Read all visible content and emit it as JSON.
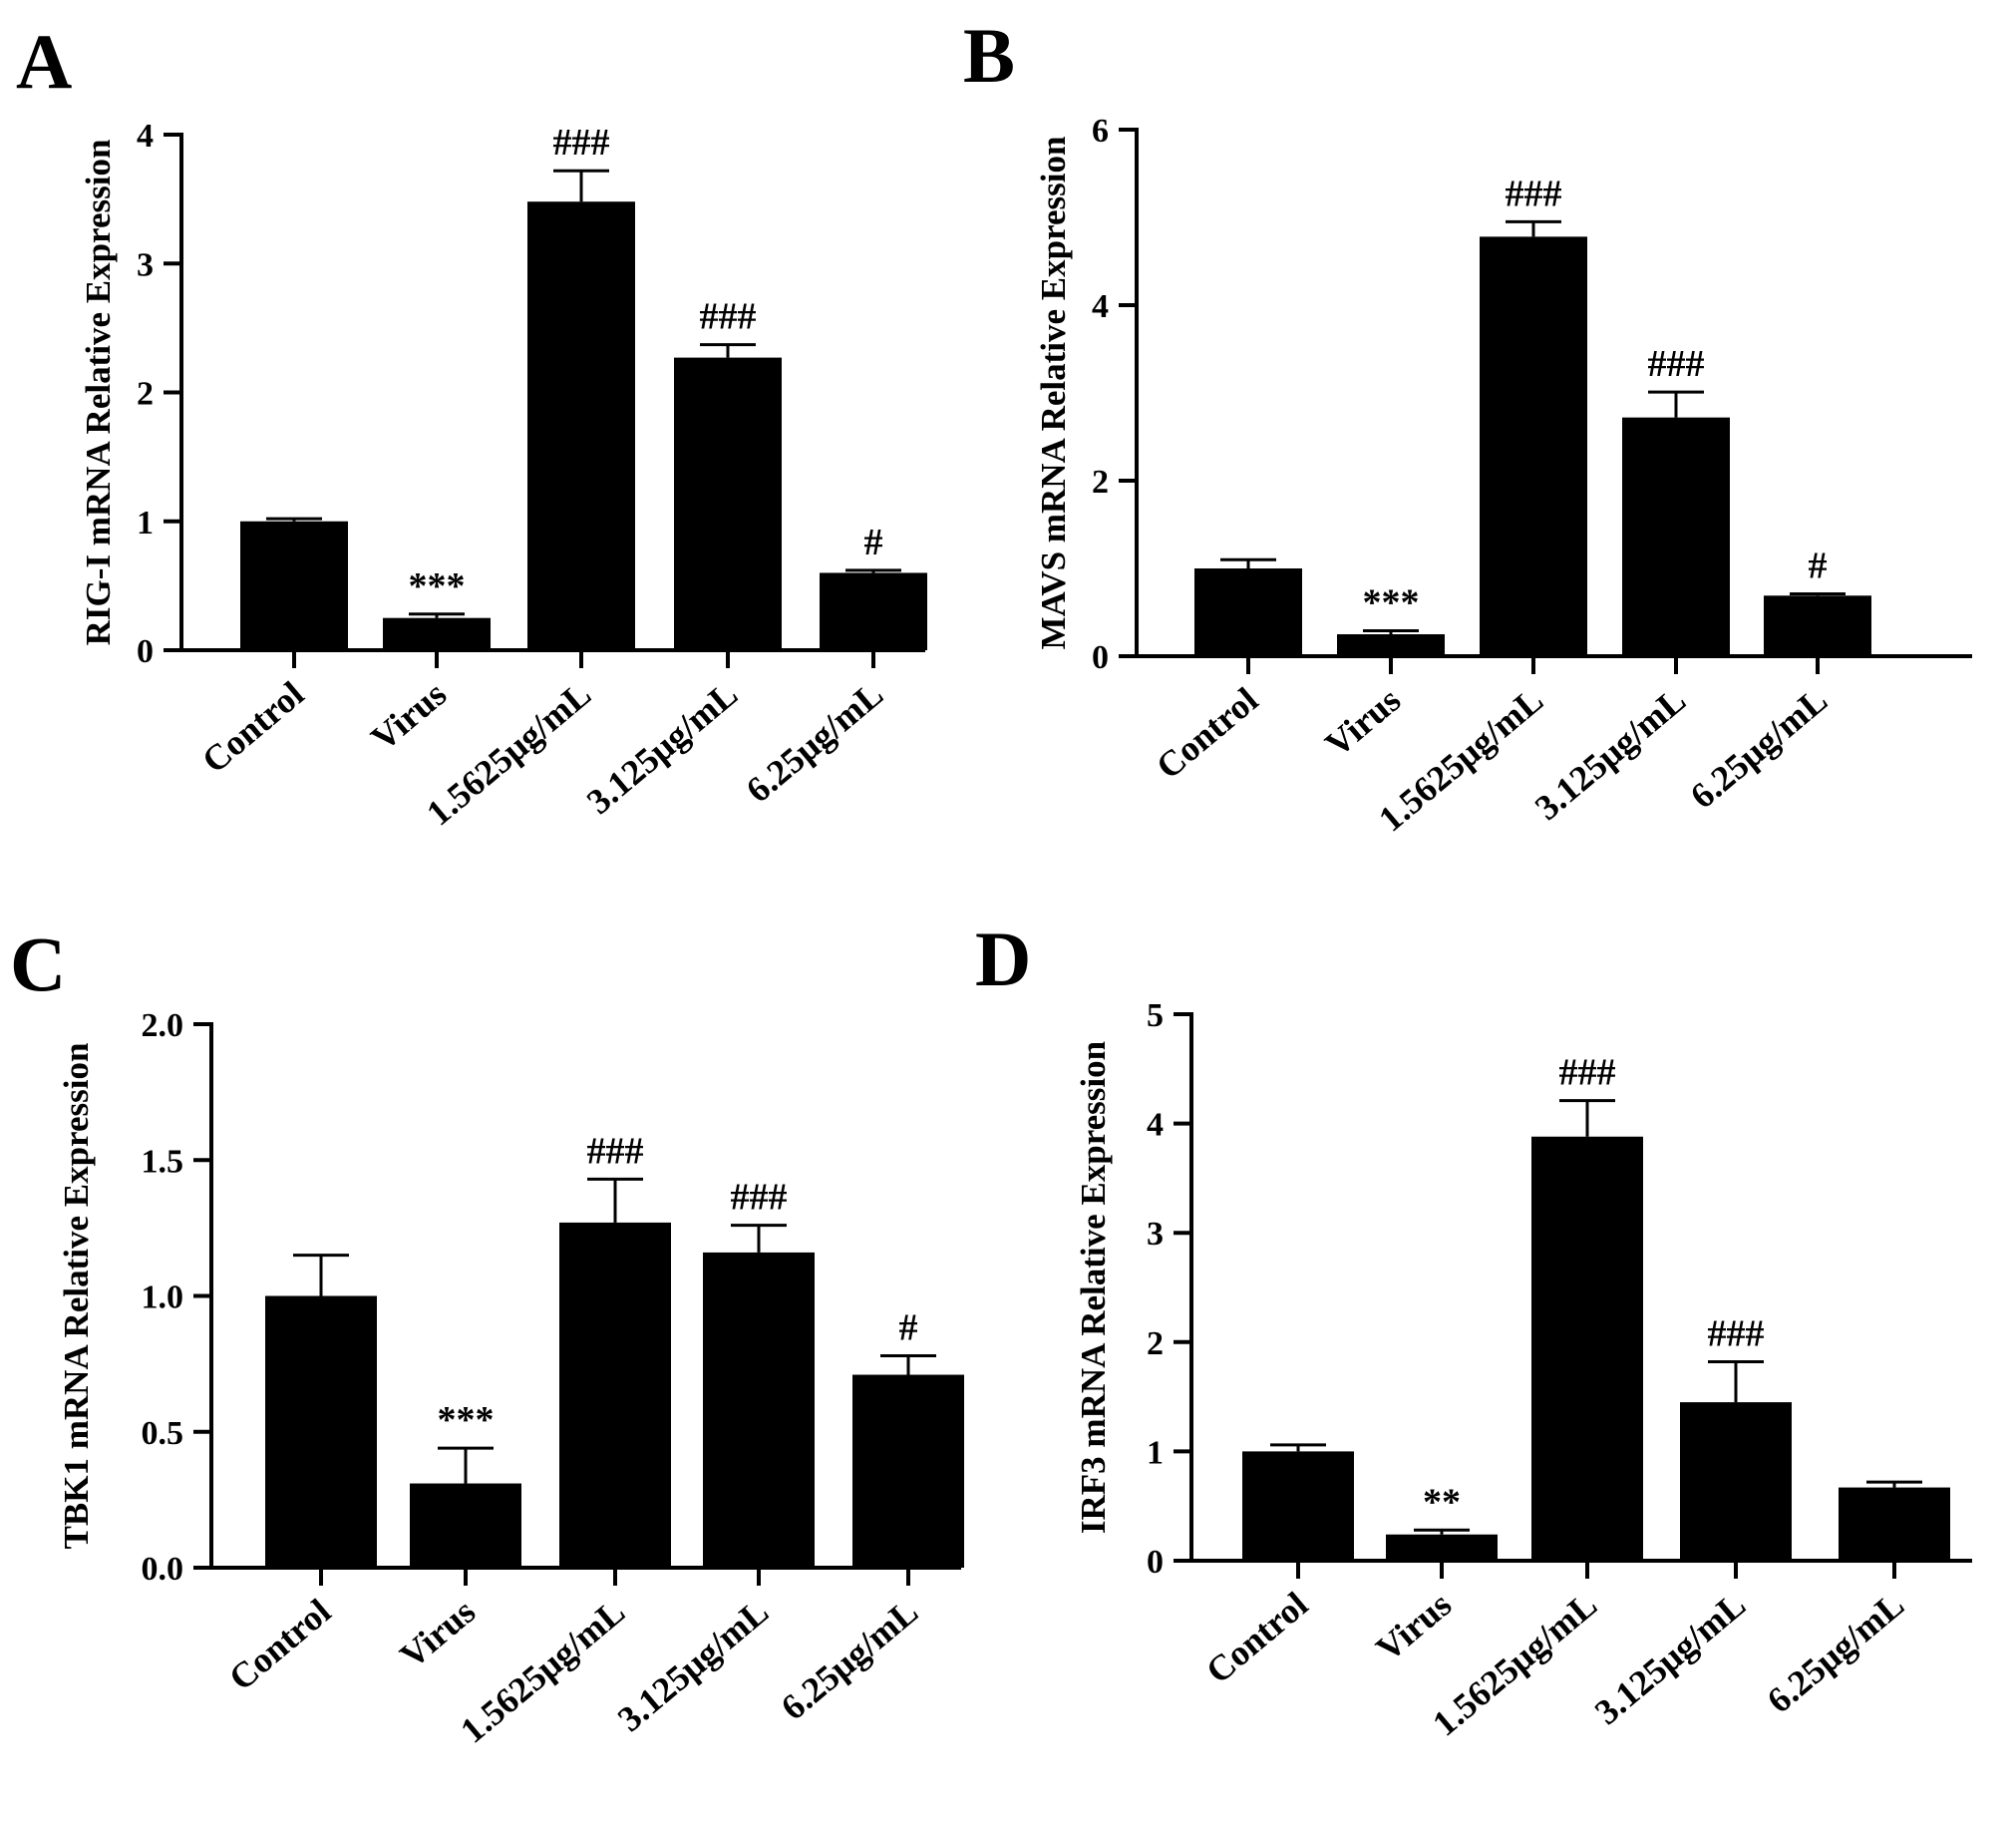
{
  "chart_data": [
    {
      "panel": "A",
      "type": "bar",
      "ylabel": "RIG-I mRNA Relative Expression",
      "ylim": [
        0,
        4
      ],
      "yticks": [
        "0",
        "1",
        "2",
        "3",
        "4"
      ],
      "categories": [
        "Control",
        "Virus",
        "1.5625μg/mL",
        "3.125μg/mL",
        "6.25μg/mL"
      ],
      "values": [
        1.0,
        0.25,
        3.48,
        2.27,
        0.6
      ],
      "errors": [
        0.02,
        0.03,
        0.24,
        0.1,
        0.02
      ],
      "annotations": [
        "",
        "***",
        "###",
        "###",
        "#"
      ]
    },
    {
      "panel": "B",
      "type": "bar",
      "ylabel": "MAVS mRNA Relative Expression",
      "ylim": [
        0,
        6
      ],
      "yticks": [
        "0",
        "2",
        "4",
        "6"
      ],
      "categories": [
        "Control",
        "Virus",
        "1.5625μg/mL",
        "3.125μg/mL",
        "6.25μg/mL"
      ],
      "values": [
        1.0,
        0.25,
        4.78,
        2.72,
        0.69
      ],
      "errors": [
        0.1,
        0.04,
        0.17,
        0.29,
        0.02
      ],
      "annotations": [
        "",
        "***",
        "###",
        "###",
        "#"
      ]
    },
    {
      "panel": "C",
      "type": "bar",
      "ylabel": "TBK1 mRNA Relative Expression",
      "ylim": [
        0,
        2.0
      ],
      "yticks": [
        "0.0",
        "0.5",
        "1.0",
        "1.5",
        "2.0"
      ],
      "categories": [
        "Control",
        "Virus",
        "1.5625μg/mL",
        "3.125μg/mL",
        "6.25μg/mL"
      ],
      "values": [
        1.0,
        0.31,
        1.27,
        1.16,
        0.71
      ],
      "errors": [
        0.15,
        0.13,
        0.16,
        0.1,
        0.07
      ],
      "annotations": [
        "",
        "***",
        "###",
        "###",
        "#"
      ]
    },
    {
      "panel": "D",
      "type": "bar",
      "ylabel": "IRF3 mRNA Relative Expression",
      "ylim": [
        0,
        5
      ],
      "yticks": [
        "0",
        "1",
        "2",
        "3",
        "4",
        "5"
      ],
      "categories": [
        "Control",
        "Virus",
        "1.5625μg/mL",
        "3.125μg/mL",
        "6.25μg/mL"
      ],
      "values": [
        1.0,
        0.24,
        3.88,
        1.45,
        0.67
      ],
      "errors": [
        0.06,
        0.04,
        0.33,
        0.37,
        0.05
      ],
      "annotations": [
        "",
        "**",
        "###",
        "###",
        ""
      ]
    }
  ]
}
